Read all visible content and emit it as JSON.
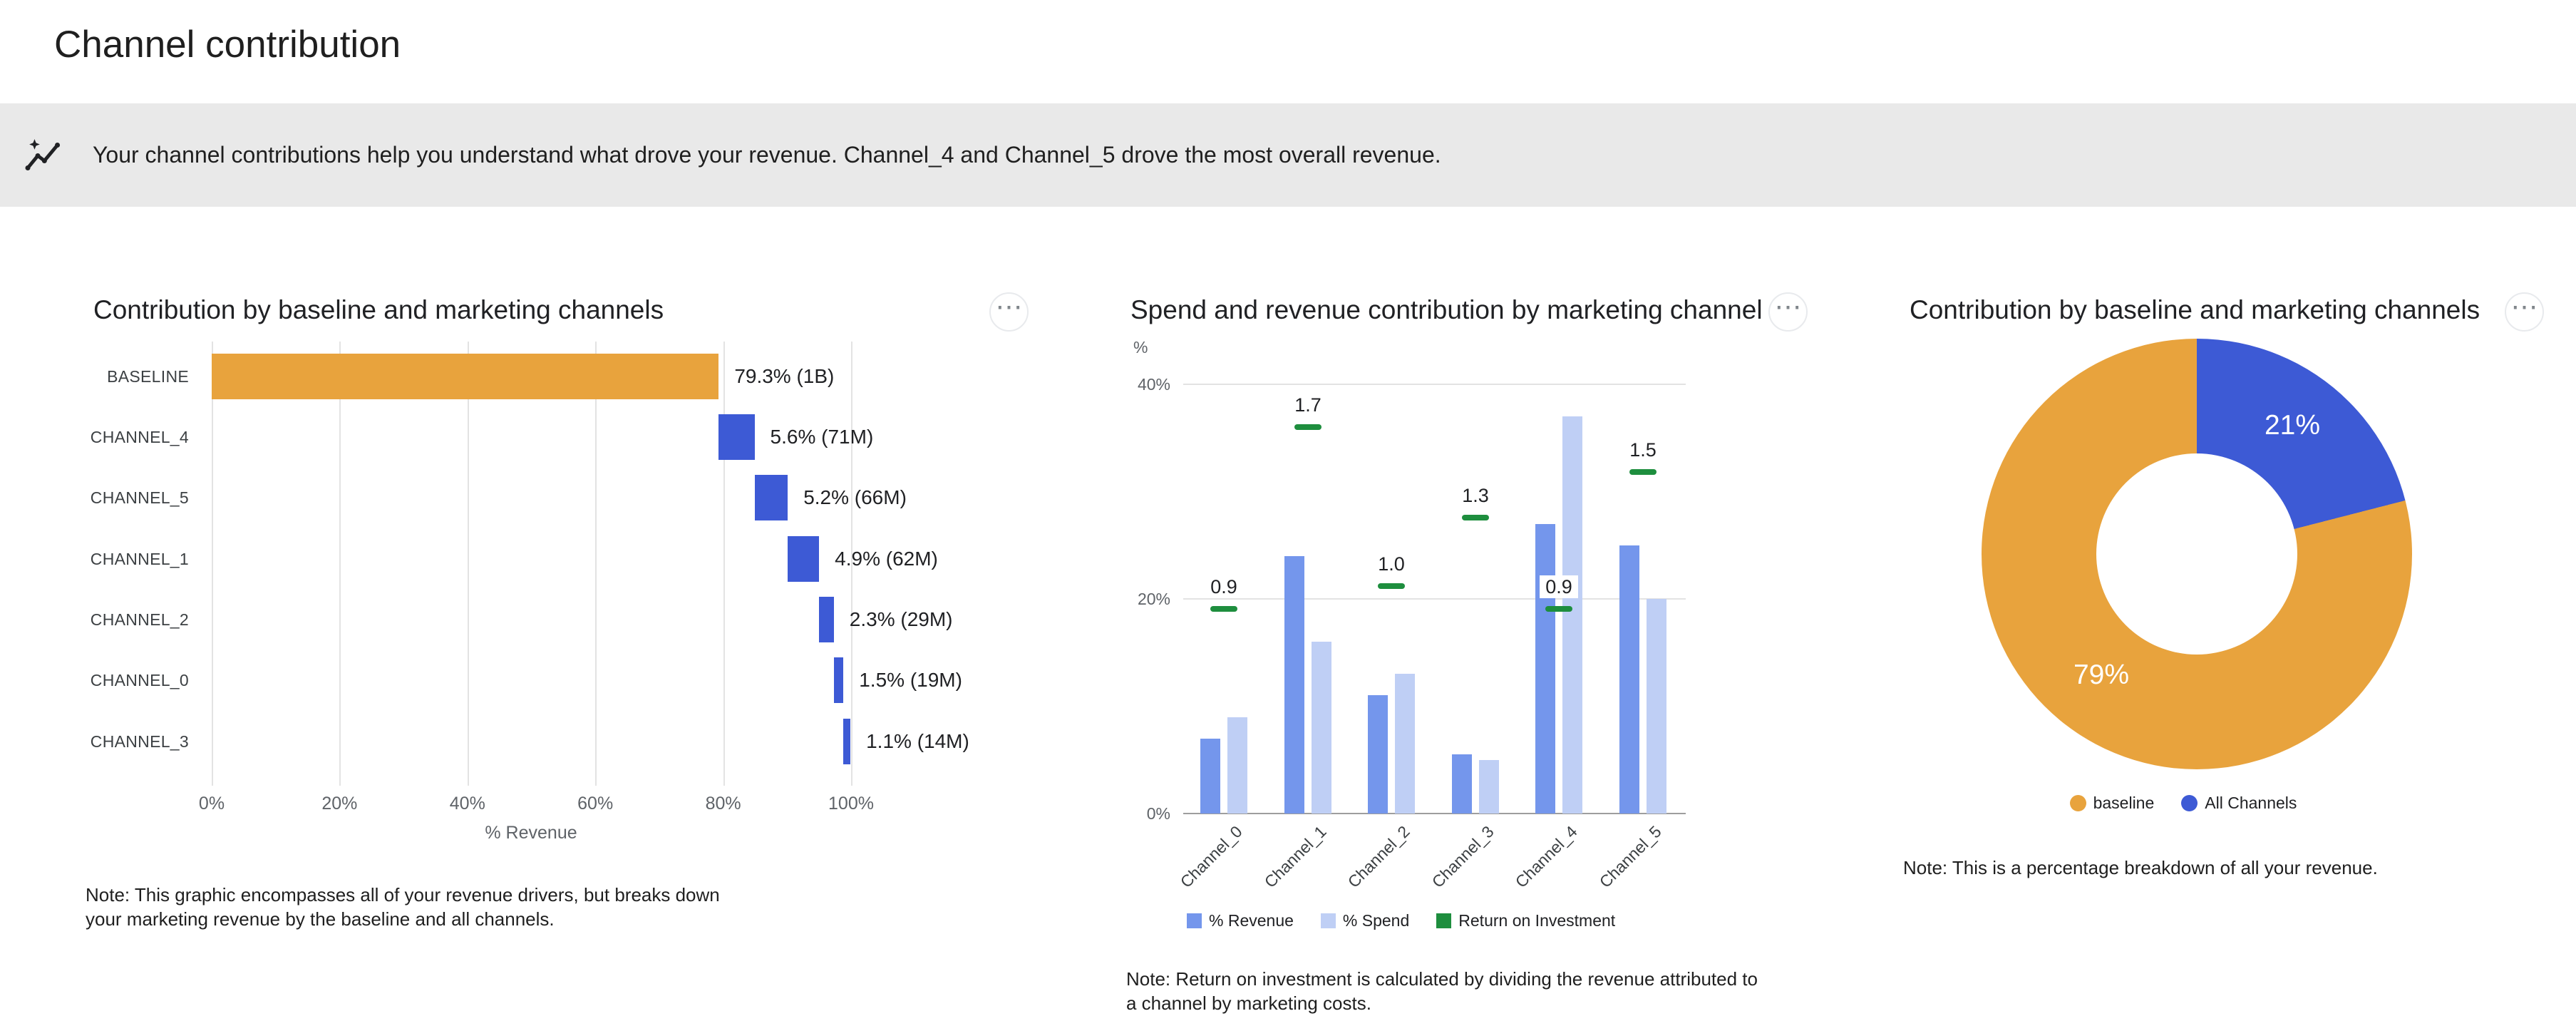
{
  "page_title": "Channel contribution",
  "banner": {
    "icon": "insights-icon",
    "text": "Your channel contributions help you understand what drove your revenue. Channel_4 and Channel_5 drove the most overall revenue."
  },
  "icons": {
    "more_options": "⋯"
  },
  "colors": {
    "baseline_orange": "#E8A33D",
    "channel_blue": "#3D5AD5",
    "revenue_blue": "#7496EC",
    "spend_blue": "#BFCFF5",
    "roi_green": "#1E8E3E",
    "grid": "#E3E3E3",
    "banner_bg": "#E9E9E9"
  },
  "chart_data": [
    {
      "type": "bar",
      "variant": "horizontal-waterfall",
      "title": "Contribution by baseline and marketing channels",
      "categories": [
        "BASELINE",
        "CHANNEL_4",
        "CHANNEL_5",
        "CHANNEL_1",
        "CHANNEL_2",
        "CHANNEL_0",
        "CHANNEL_3"
      ],
      "values": [
        79.3,
        5.6,
        5.2,
        4.9,
        2.3,
        1.5,
        1.1
      ],
      "value_labels": [
        "79.3% (1B)",
        "5.6% (71M)",
        "5.2% (66M)",
        "4.9% (62M)",
        "2.3% (29M)",
        "1.5% (19M)",
        "1.1% (14M)"
      ],
      "xlabel": "% Revenue",
      "x_ticks": [
        "0%",
        "20%",
        "40%",
        "60%",
        "80%",
        "100%"
      ],
      "xlim": [
        0,
        100
      ],
      "grid": true,
      "note": "Note: This graphic encompasses all of your revenue drivers, but breaks down your marketing revenue by the baseline and all channels."
    },
    {
      "type": "bar",
      "variant": "grouped-with-roi-markers",
      "title": "Spend and revenue contribution by marketing channel",
      "categories": [
        "Channel_0",
        "Channel_1",
        "Channel_2",
        "Channel_3",
        "Channel_4",
        "Channel_5"
      ],
      "series": [
        {
          "name": "% Revenue",
          "values": [
            7,
            24,
            11,
            5.5,
            27,
            25
          ]
        },
        {
          "name": "% Spend",
          "values": [
            9,
            16,
            13,
            5,
            37,
            20
          ]
        },
        {
          "name": "Return on Investment",
          "values": [
            0.9,
            1.7,
            1.0,
            1.3,
            0.9,
            1.5
          ]
        }
      ],
      "roi_labels": [
        "0.9",
        "1.7",
        "1.0",
        "1.3",
        "0.9",
        "1.5"
      ],
      "ylabel": "%",
      "y_ticks": [
        "0%",
        "20%",
        "40%"
      ],
      "ylim": [
        0,
        43
      ],
      "grid": true,
      "legend_position": "bottom",
      "note": "Note: Return on investment is calculated by dividing the revenue attributed to a channel by marketing costs."
    },
    {
      "type": "pie",
      "variant": "donut",
      "title": "Contribution by baseline and marketing channels",
      "labels": [
        "baseline",
        "All Channels"
      ],
      "values": [
        79,
        21
      ],
      "slice_labels": [
        "79%",
        "21%"
      ],
      "legend_position": "bottom",
      "note": "Note: This is a percentage breakdown of all your revenue."
    }
  ]
}
